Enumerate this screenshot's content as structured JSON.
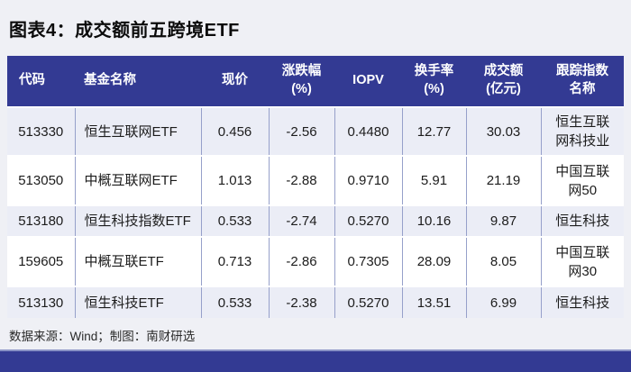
{
  "title": "图表4：成交额前五跨境ETF",
  "source_note": "数据来源：Wind；制图：南财研选",
  "colors": {
    "header_bg": "#333A93",
    "footer_bg": "#333A93",
    "stripe_bg": "#EBEDF6",
    "divider": "#96A0CA",
    "page_bg": "#EFF0F5",
    "header_text": "#FFFFFF",
    "body_text": "#1C1C1C"
  },
  "table": {
    "columns": [
      {
        "key": "code",
        "label": "代码"
      },
      {
        "key": "name",
        "label": "基金名称"
      },
      {
        "key": "price",
        "label": "现价"
      },
      {
        "key": "change",
        "label": "涨跌幅\n(%)"
      },
      {
        "key": "iopv",
        "label": "IOPV"
      },
      {
        "key": "turnover_rate",
        "label": "换手率\n(%)"
      },
      {
        "key": "turnover_amount",
        "label": "成交额\n(亿元)"
      },
      {
        "key": "index_name",
        "label": "跟踪指数\n名称"
      }
    ],
    "rows": [
      {
        "code": "513330",
        "name": "恒生互联网ETF",
        "price": "0.456",
        "change": "-2.56",
        "iopv": "0.4480",
        "turnover_rate": "12.77",
        "turnover_amount": "30.03",
        "index_name": "恒生互联\n网科技业"
      },
      {
        "code": "513050",
        "name": "中概互联网ETF",
        "price": "1.013",
        "change": "-2.88",
        "iopv": "0.9710",
        "turnover_rate": "5.91",
        "turnover_amount": "21.19",
        "index_name": "中国互联\n网50"
      },
      {
        "code": "513180",
        "name": "恒生科技指数ETF",
        "price": "0.533",
        "change": "-2.74",
        "iopv": "0.5270",
        "turnover_rate": "10.16",
        "turnover_amount": "9.87",
        "index_name": "恒生科技"
      },
      {
        "code": "159605",
        "name": "中概互联ETF",
        "price": "0.713",
        "change": "-2.86",
        "iopv": "0.7305",
        "turnover_rate": "28.09",
        "turnover_amount": "8.05",
        "index_name": "中国互联\n网30"
      },
      {
        "code": "513130",
        "name": "恒生科技ETF",
        "price": "0.533",
        "change": "-2.38",
        "iopv": "0.5270",
        "turnover_rate": "13.51",
        "turnover_amount": "6.99",
        "index_name": "恒生科技"
      }
    ]
  },
  "chart_data": {
    "type": "table",
    "title": "图表4：成交额前五跨境ETF",
    "columns": [
      "代码",
      "基金名称",
      "现价",
      "涨跌幅(%)",
      "IOPV",
      "换手率(%)",
      "成交额(亿元)",
      "跟踪指数名称"
    ],
    "rows": [
      [
        "513330",
        "恒生互联网ETF",
        0.456,
        -2.56,
        0.448,
        12.77,
        30.03,
        "恒生互联网科技业"
      ],
      [
        "513050",
        "中概互联网ETF",
        1.013,
        -2.88,
        0.971,
        5.91,
        21.19,
        "中国互联网50"
      ],
      [
        "513180",
        "恒生科技指数ETF",
        0.533,
        -2.74,
        0.527,
        10.16,
        9.87,
        "恒生科技"
      ],
      [
        "159605",
        "中概互联ETF",
        0.713,
        -2.86,
        0.7305,
        28.09,
        8.05,
        "中国互联网30"
      ],
      [
        "513130",
        "恒生科技ETF",
        0.533,
        -2.38,
        0.527,
        13.51,
        6.99,
        "恒生科技"
      ]
    ],
    "source": "数据来源：Wind；制图：南财研选"
  }
}
